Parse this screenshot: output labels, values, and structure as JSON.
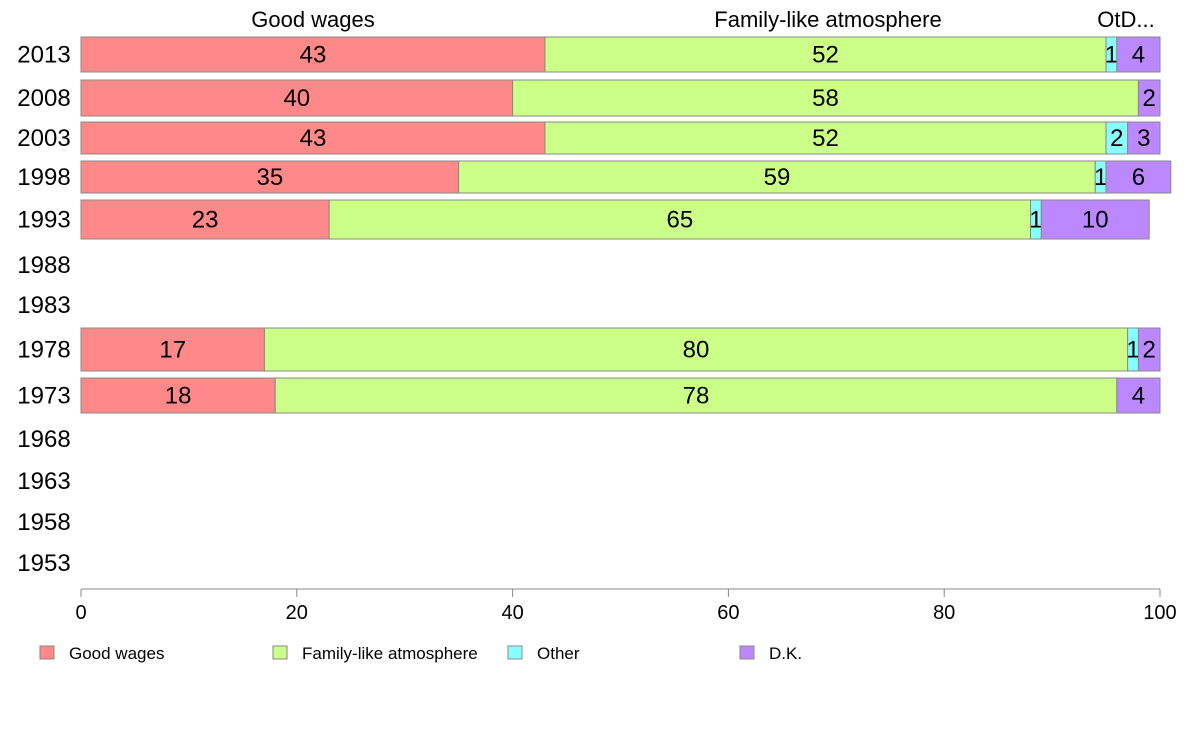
{
  "chart_data": {
    "type": "bar",
    "orientation": "horizontal",
    "stacked": true,
    "categories": [
      "2013",
      "2008",
      "2003",
      "1998",
      "1993",
      "1988",
      "1983",
      "1978",
      "1973",
      "1968",
      "1963",
      "1958",
      "1953"
    ],
    "series": [
      {
        "name": "Good wages",
        "color": "#ff8888",
        "values": [
          43,
          40,
          43,
          35,
          23,
          null,
          null,
          17,
          18,
          null,
          null,
          null,
          null
        ]
      },
      {
        "name": "Family-like atmosphere",
        "color": "#ccff88",
        "values": [
          52,
          58,
          52,
          59,
          65,
          null,
          null,
          80,
          78,
          null,
          null,
          null,
          null
        ]
      },
      {
        "name": "Other",
        "color": "#88ffff",
        "values": [
          1,
          0,
          2,
          1,
          1,
          null,
          null,
          1,
          0,
          null,
          null,
          null,
          null
        ]
      },
      {
        "name": "D.K.",
        "color": "#bb88ff",
        "values": [
          4,
          2,
          3,
          6,
          10,
          null,
          null,
          2,
          4,
          null,
          null,
          null,
          null
        ]
      }
    ],
    "top_labels": [
      "Good wages",
      "Family-like atmosphere",
      "OtD..."
    ],
    "xlim": [
      0,
      100
    ],
    "xticks": [
      "0",
      "20",
      "40",
      "60",
      "80",
      "100"
    ],
    "legend_position": "bottom",
    "grid": false
  }
}
